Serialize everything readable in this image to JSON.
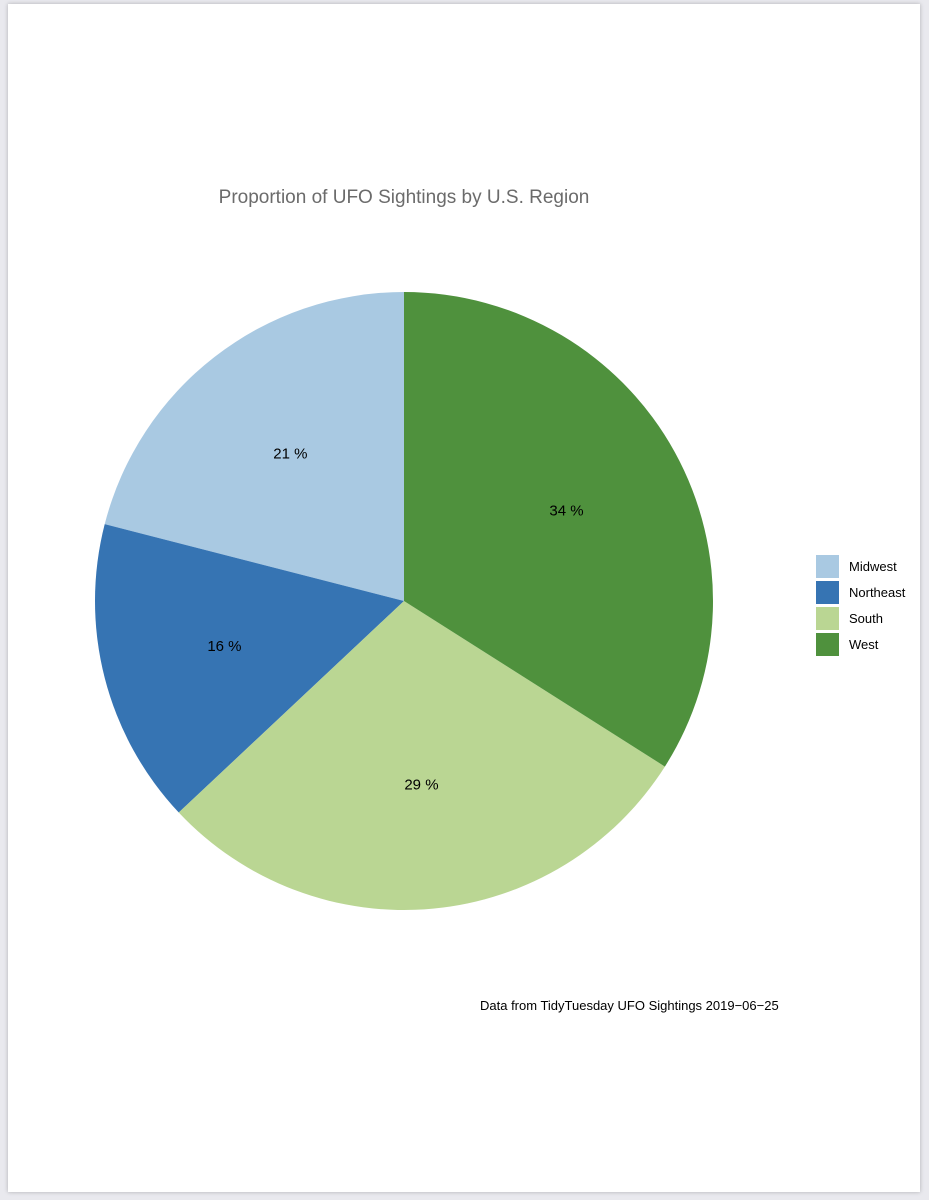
{
  "chart_data": {
    "type": "pie",
    "title": "Proportion of UFO Sightings by U.S. Region",
    "categories": [
      "Midwest",
      "Northeast",
      "South",
      "West"
    ],
    "values": [
      21,
      16,
      29,
      34
    ],
    "labels": [
      "21 %",
      "16 %",
      "29 %",
      "34 %"
    ],
    "colors": [
      "#a9c9e2",
      "#3674b3",
      "#bad693",
      "#4f913d"
    ],
    "legend_placement": "right",
    "caption": "Data from TidyTuesday UFO Sightings 2019−06−25"
  }
}
